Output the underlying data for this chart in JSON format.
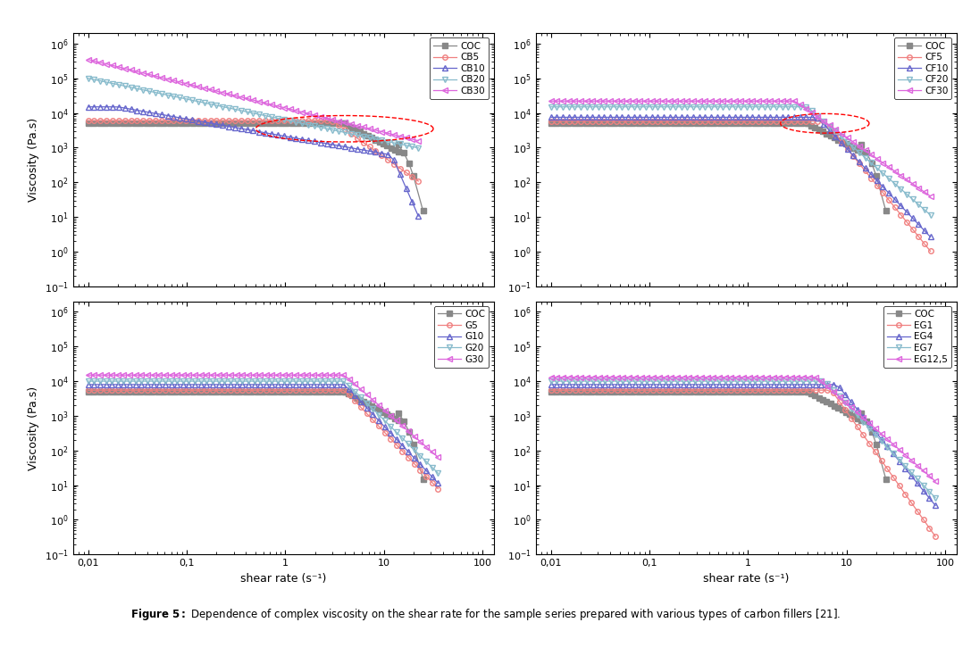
{
  "ylabel": "Viscosity (Pa.s)",
  "xlabel": "shear rate (s⁻¹)",
  "subplot_legends": [
    [
      "COC",
      "CB5",
      "CB10",
      "CB20",
      "CB30"
    ],
    [
      "COC",
      "CF5",
      "CF10",
      "CF20",
      "CF30"
    ],
    [
      "COC",
      "G5",
      "G10",
      "G20",
      "G30"
    ],
    [
      "COC",
      "EG1",
      "EG4",
      "EG7",
      "EG12,5"
    ]
  ],
  "c_coc": "#888888",
  "c_5": "#f08080",
  "c_10": "#6666cc",
  "c_20": "#88bbcc",
  "c_30": "#dd66dd",
  "caption_bold": "Figure 5:",
  "caption_rest": " Dependence of complex viscosity on the shear rate for the sample series prepared with various types of carbon fillers [21]."
}
